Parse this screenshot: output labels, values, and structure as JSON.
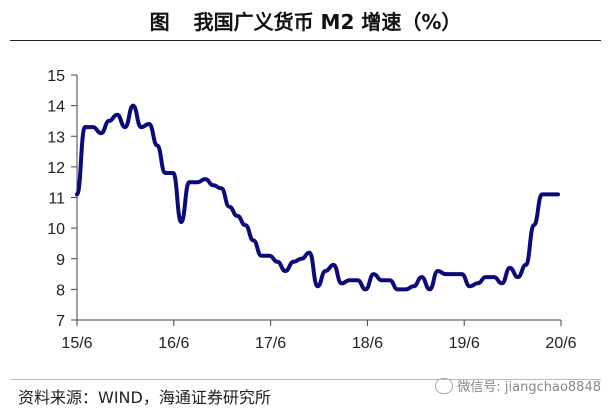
{
  "header": {
    "label": "图",
    "title": "我国广义货币 M2 增速（%）"
  },
  "footer": {
    "source": "资料来源：WIND，海通证券研究所",
    "watermark": "微信号: jiangchao8848"
  },
  "chart_data": {
    "type": "line",
    "title": "我国广义货币 M2 增速（%）",
    "xlabel": "",
    "ylabel": "",
    "ylim": [
      7,
      15
    ],
    "y_ticks": [
      "7",
      "8",
      "9",
      "10",
      "11",
      "12",
      "13",
      "14",
      "15"
    ],
    "x_ticks": [
      "15/6",
      "16/6",
      "17/6",
      "18/6",
      "19/6",
      "20/6"
    ],
    "grid": false,
    "color": "#0a0a7a",
    "series": [
      {
        "values": [
          11.1,
          13.3,
          13.3,
          13.1,
          13.5,
          13.7,
          13.3,
          14.0,
          13.3,
          13.4,
          12.7,
          11.8,
          11.8,
          10.2,
          11.5,
          11.5,
          11.6,
          11.4,
          11.3,
          10.7,
          10.4,
          10.1,
          9.6,
          9.1,
          9.1,
          8.9,
          8.6,
          8.9,
          9.0,
          9.2,
          8.1,
          8.6,
          8.8,
          8.2,
          8.3,
          8.3,
          8.0,
          8.5,
          8.3,
          8.3,
          8.0,
          8.0,
          8.1,
          8.4,
          8.0,
          8.6,
          8.5,
          8.5,
          8.5,
          8.1,
          8.2,
          8.4,
          8.4,
          8.2,
          8.7,
          8.4,
          8.8,
          10.1,
          11.1,
          11.1,
          11.1
        ]
      }
    ]
  }
}
